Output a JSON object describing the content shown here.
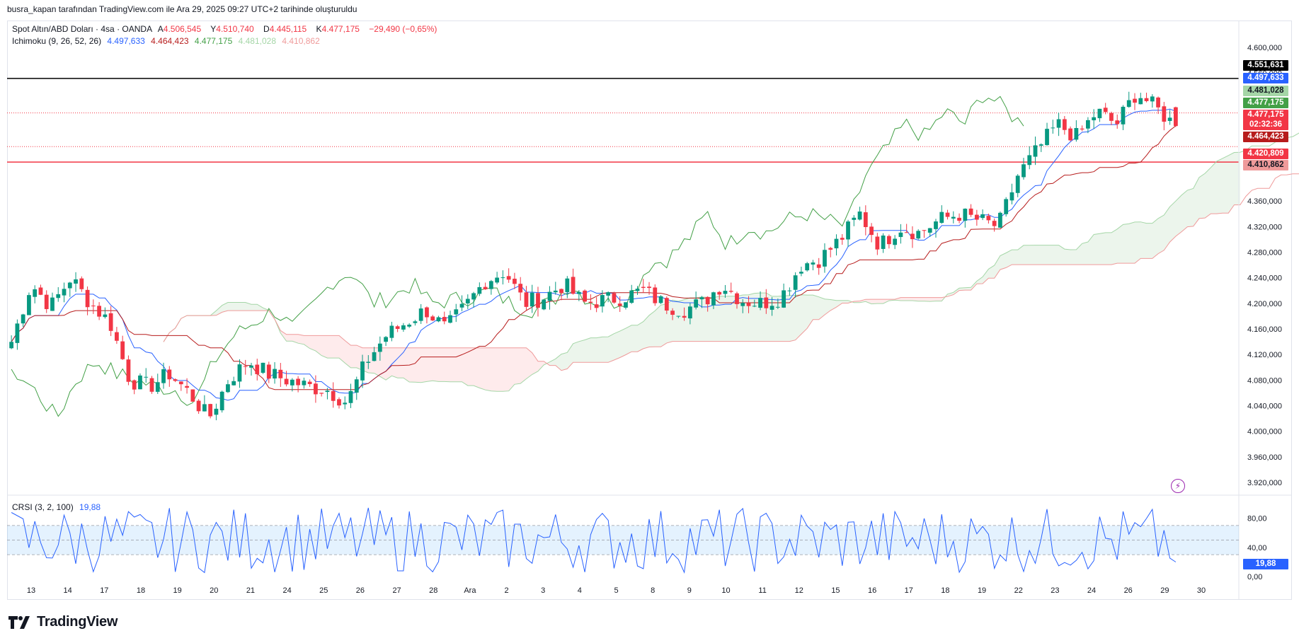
{
  "header": {
    "attribution": "busra_kapan tarafından TradingView.com ile Ara 29, 2025 09:27 UTC+2 tarihinde oluşturuldu"
  },
  "legend": {
    "symbol": "Spot Altın/ABD Doları · 4sa · OANDA",
    "open_label": "A",
    "open": "4.506,545",
    "high_label": "Y",
    "high": "4.510,740",
    "low_label": "D",
    "low": "4.445,115",
    "close_label": "K",
    "close": "4.477,175",
    "change": "−29,490 (−0,65%)",
    "ichimoku_name": "Ichimoku (9, 26, 52, 26)",
    "ichimoku_values": [
      "4.497,633",
      "4.464,423",
      "4.477,175",
      "4.481,028",
      "4.410,862"
    ],
    "crsi_name": "CRSI (3, 2, 100)",
    "crsi_value": "19,88"
  },
  "colors": {
    "up": "#089981",
    "down": "#f23645",
    "tenkan": "#2962ff",
    "kijun": "#b71c1c",
    "chikou": "#43a047",
    "spanA": "#a5d6a7",
    "spanB": "#ef9a9a",
    "crsi": "#2962ff"
  },
  "price_axis_labels": [
    {
      "text": "4.551,631",
      "bg": "#000000"
    },
    {
      "text": "4.497,633",
      "bg": "#2962ff"
    },
    {
      "text": "4.481,028",
      "bg": "#a5d6a7"
    },
    {
      "text": "4.477,175",
      "bg": "#43a047"
    },
    {
      "text": "4.477,175",
      "bg": "#f23645"
    },
    {
      "text": "02:32:36",
      "bg": "#f23645"
    },
    {
      "text": "4.464,423",
      "bg": "#b71c1c"
    },
    {
      "text": "4.420,809",
      "bg": "#f23645"
    },
    {
      "text": "4.410,862",
      "bg": "#ef9a9a"
    }
  ],
  "crsi_axis_label": "19,88",
  "brand": "TradingView",
  "chart_data": {
    "type": "candlestick",
    "timeframe": "4sa",
    "ylim": [
      3900,
      4630
    ],
    "price_ticks": [
      "4.600,000",
      "4.560,000",
      "4.360,000",
      "4.320,000",
      "4.280,000",
      "4.240,000",
      "4.200,000",
      "4.160,000",
      "4.120,000",
      "4.080,000",
      "4.040,000",
      "4.000,000",
      "3.960,000",
      "3.920,000"
    ],
    "price_tick_values": [
      4600,
      4560,
      4360,
      4320,
      4280,
      4240,
      4200,
      4160,
      4120,
      4080,
      4040,
      4000,
      3960,
      3920
    ],
    "x_ticks": [
      "13",
      "14",
      "17",
      "18",
      "19",
      "20",
      "21",
      "24",
      "25",
      "26",
      "27",
      "28",
      "Ara",
      "2",
      "3",
      "4",
      "5",
      "8",
      "9",
      "10",
      "11",
      "12",
      "15",
      "16",
      "17",
      "18",
      "19",
      "22",
      "23",
      "24",
      "26",
      "29",
      "30"
    ],
    "horizontal_lines": [
      {
        "value": 4551.631,
        "color": "#000000",
        "style": "solid"
      },
      {
        "value": 4497.633,
        "color": "#f23645",
        "style": "dotted"
      },
      {
        "value": 4445.0,
        "color": "#f23645",
        "style": "dotted"
      },
      {
        "value": 4420.809,
        "color": "#f23645",
        "style": "solid"
      }
    ],
    "series": [
      {
        "name": "Ichimoku",
        "last": [
          4497.633,
          4464.423,
          4477.175,
          4481.028,
          4410.862
        ]
      }
    ],
    "close_anchors": [
      4140,
      4230,
      4195,
      4240,
      4200,
      4170,
      4080,
      4070,
      4090,
      4060,
      4020,
      4080,
      4110,
      4090,
      4080,
      4070,
      4065,
      4045,
      4110,
      4150,
      4170,
      4190,
      4160,
      4195,
      4235,
      4250,
      4200,
      4210,
      4230,
      4200,
      4205,
      4210,
      4220,
      4200,
      4190,
      4200,
      4230,
      4205,
      4200,
      4210,
      4260,
      4270,
      4300,
      4340,
      4290,
      4320,
      4310,
      4330,
      4340,
      4330,
      4320,
      4400,
      4440,
      4480,
      4460,
      4500,
      4480,
      4530,
      4505,
      4477
    ],
    "crsi": {
      "ylim": [
        0,
        100
      ],
      "ticks": [
        "80,00",
        "40,00",
        "0,00"
      ],
      "tick_values": [
        80,
        40,
        0
      ],
      "band": [
        30,
        70
      ],
      "last": 19.88
    }
  }
}
